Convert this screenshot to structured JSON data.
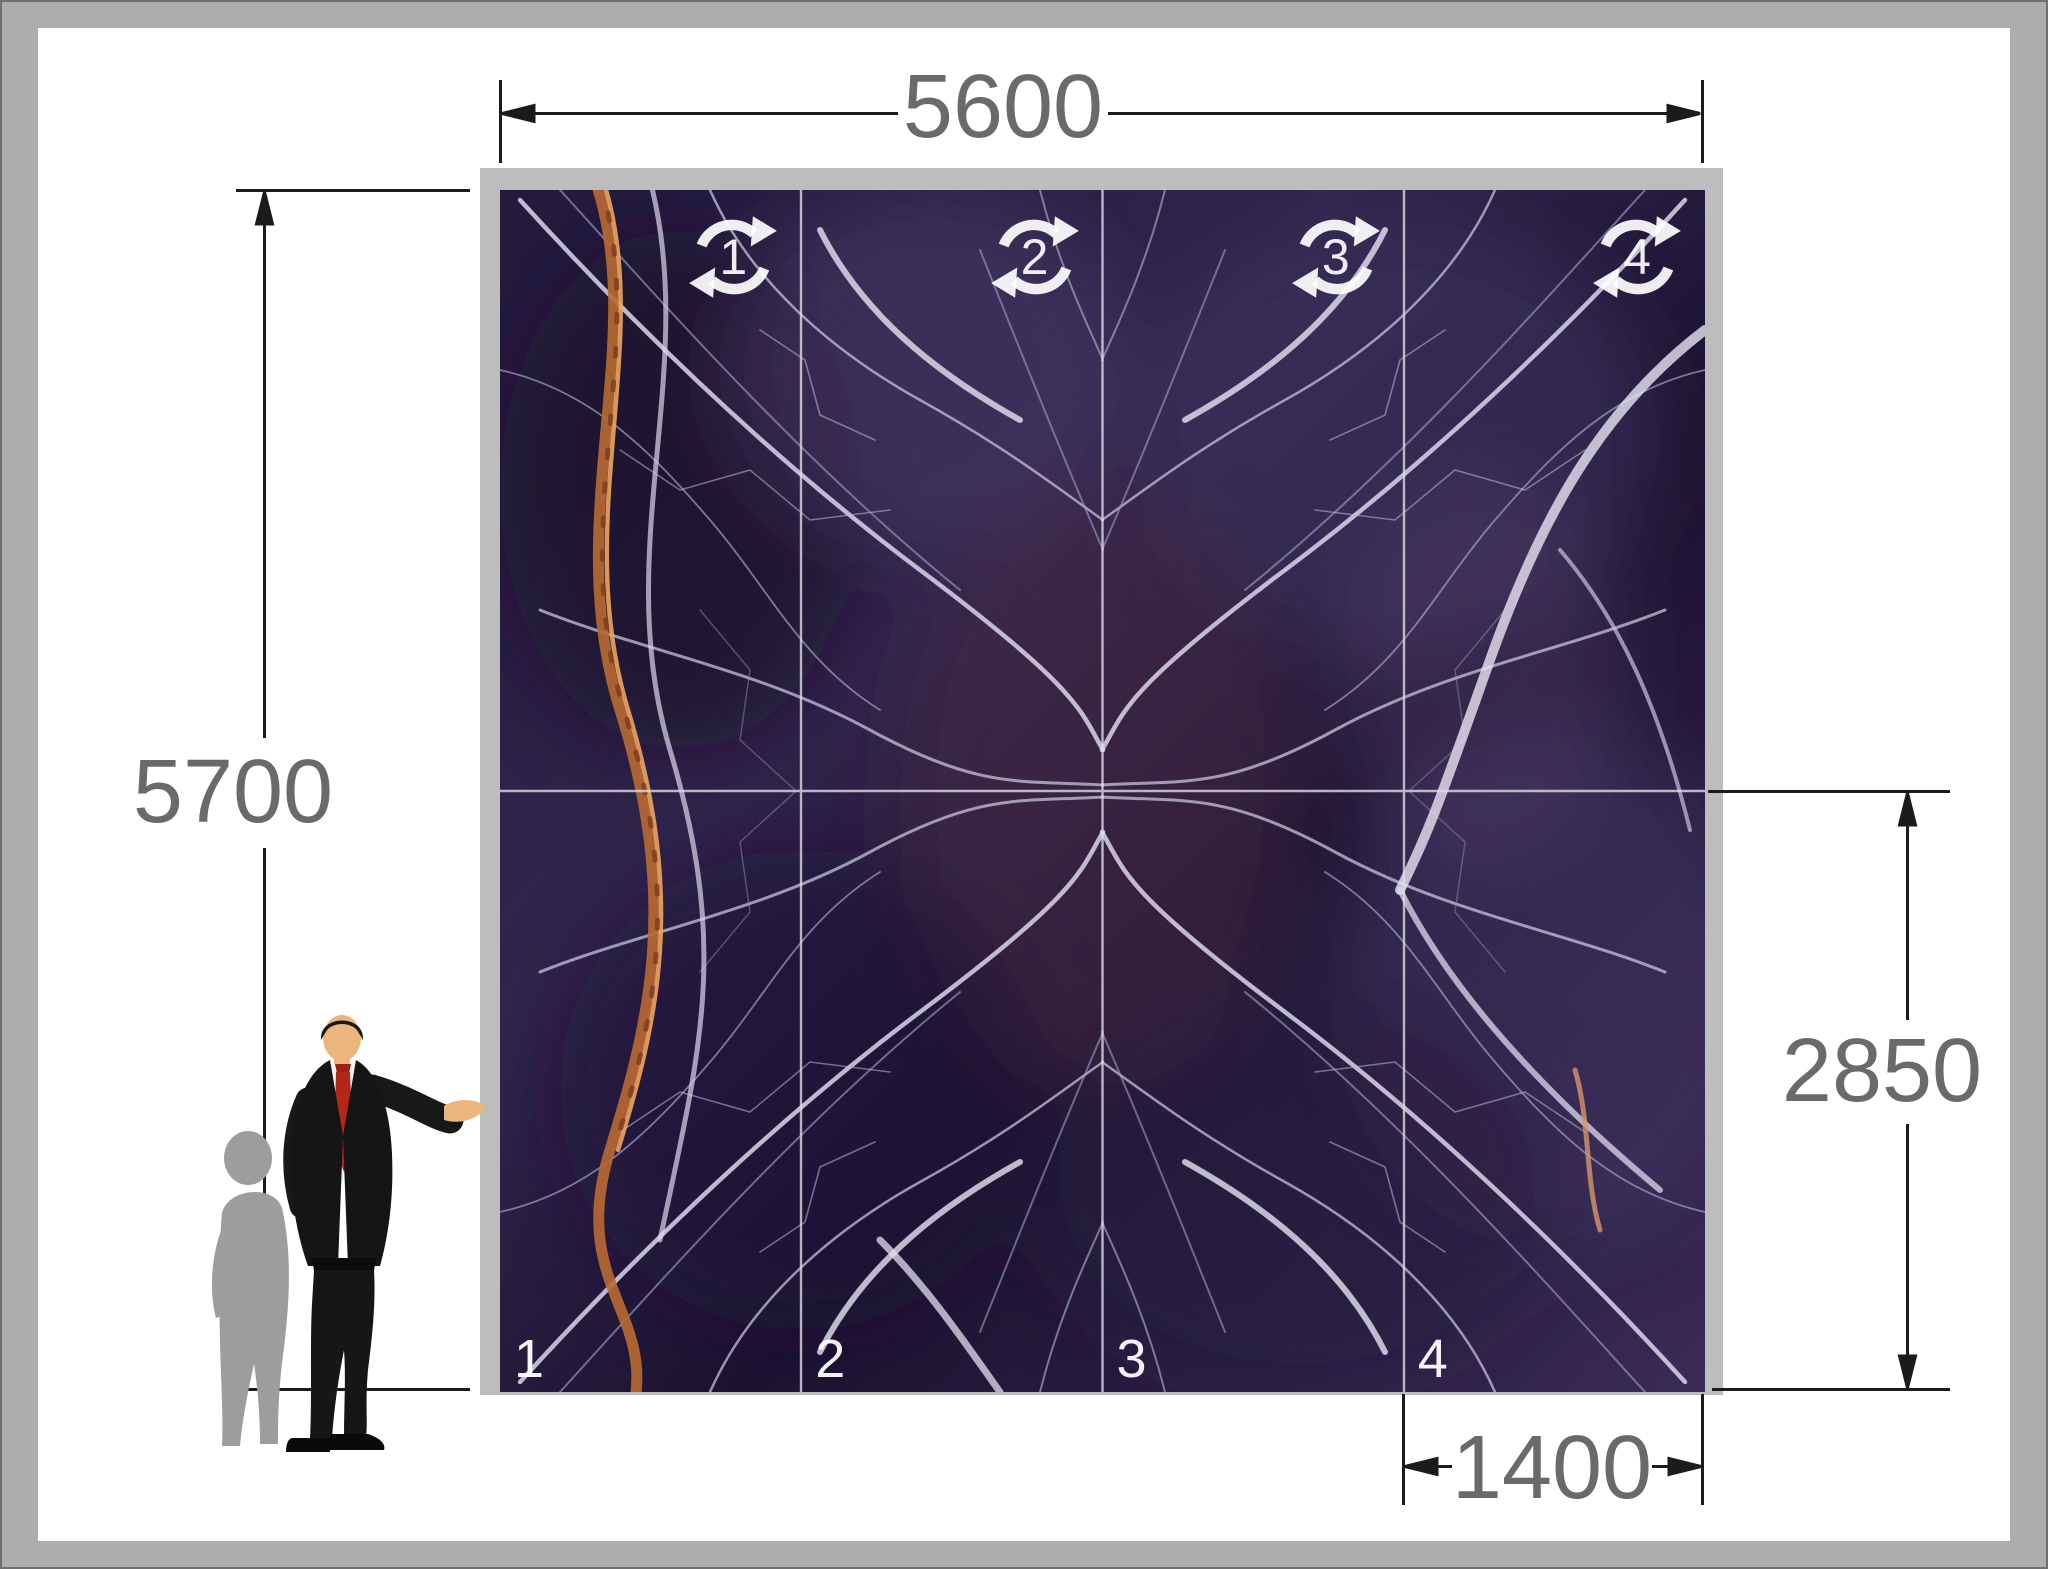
{
  "dimensions": {
    "total_width": "5600",
    "total_height": "5700",
    "lower_row_height": "2850",
    "panel_width": "1400"
  },
  "panels": [
    {
      "number": "1"
    },
    {
      "number": "2"
    },
    {
      "number": "3"
    },
    {
      "number": "4"
    }
  ],
  "icons": {
    "panel_badge": "rotate-icon",
    "scale_figure": "businessman-presenting-icon"
  },
  "colors": {
    "dimension_text": "#6a6a6a",
    "dimension_line": "#1b1b1b",
    "outer_border": "#adadad",
    "slab_frame": "#bdbdbd",
    "marble_base": "#2a1f44",
    "vein_light": "#e8e5f2",
    "vein_orange": "#c5763b",
    "panel_label": "#ffffff",
    "tie_red": "#b3261a"
  }
}
